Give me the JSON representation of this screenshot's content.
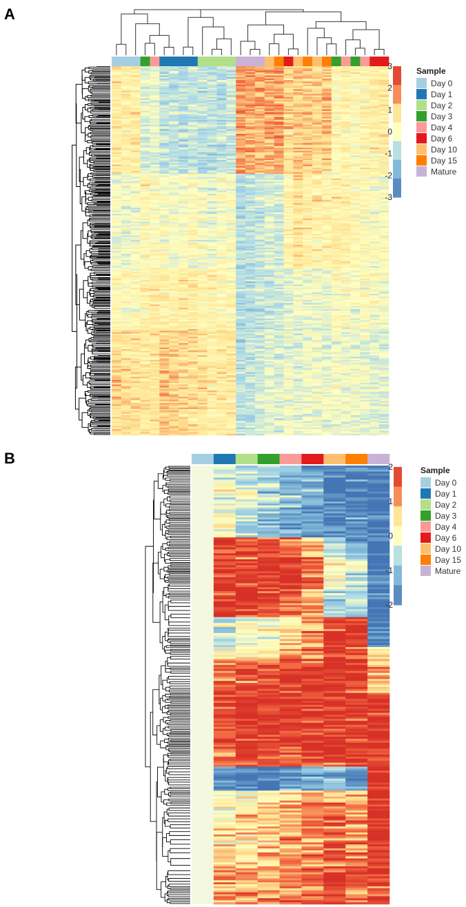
{
  "colors": {
    "Day 0": "#a6cee3",
    "Day 1": "#1f78b4",
    "Day 2": "#b2df8a",
    "Day 3": "#33a02c",
    "Day 4": "#fb9a99",
    "Day 6": "#e31a1c",
    "Day 10": "#fdbf6f",
    "Day 15": "#ff7f00",
    "Mature": "#cab2d6"
  },
  "chart_data": [
    {
      "panel": "A",
      "type": "heatmap",
      "title": "",
      "legend_title": "Sample",
      "legend_entries": [
        "Day 0",
        "Day 1",
        "Day 2",
        "Day 3",
        "Day 4",
        "Day 6",
        "Day 10",
        "Day 15",
        "Mature"
      ],
      "scale_ticks": [
        "3",
        "2",
        "1",
        "0",
        "-1",
        "-2",
        "-3"
      ],
      "scale_range": [
        -3,
        3
      ],
      "column_dendrogram": true,
      "row_dendrogram": true,
      "column_annotation": [
        "Day 0",
        "Day 0",
        "Day 0",
        "Day 3",
        "Day 4",
        "Day 1",
        "Day 1",
        "Day 1",
        "Day 1",
        "Day 2",
        "Day 2",
        "Day 2",
        "Day 2",
        "Mature",
        "Mature",
        "Mature",
        "Day 10",
        "Day 15",
        "Day 6",
        "Day 10",
        "Day 15",
        "Day 10",
        "Day 15",
        "Day 3",
        "Day 4",
        "Day 3",
        "Day 4",
        "Day 6",
        "Day 6"
      ],
      "column_profiles": [
        [
          0.6,
          -0.1,
          0.3,
          1.0
        ],
        [
          0.5,
          -0.2,
          0.2,
          0.9
        ],
        [
          0.6,
          0.0,
          0.1,
          0.9
        ],
        [
          -0.4,
          0.3,
          0.4,
          0.7
        ],
        [
          -0.3,
          0.2,
          0.6,
          0.8
        ],
        [
          -0.8,
          0.1,
          0.5,
          1.2
        ],
        [
          -0.8,
          -0.1,
          0.4,
          1.1
        ],
        [
          -0.9,
          0.0,
          0.6,
          1.0
        ],
        [
          -0.7,
          0.2,
          0.5,
          0.9
        ],
        [
          -0.8,
          0.0,
          0.3,
          0.8
        ],
        [
          -0.8,
          -0.2,
          0.4,
          0.6
        ],
        [
          -0.9,
          0.0,
          0.3,
          0.7
        ],
        [
          -0.7,
          0.1,
          0.2,
          0.7
        ],
        [
          1.6,
          -0.9,
          -0.9,
          -0.8
        ],
        [
          1.5,
          -0.8,
          -1.0,
          -0.7
        ],
        [
          1.4,
          -0.7,
          -0.8,
          -0.6
        ],
        [
          1.4,
          -0.4,
          -0.7,
          -0.3
        ],
        [
          1.6,
          -0.5,
          -0.6,
          -0.4
        ],
        [
          0.9,
          0.4,
          -0.3,
          -0.1
        ],
        [
          1.1,
          0.9,
          -0.2,
          -0.3
        ],
        [
          1.2,
          0.6,
          -0.3,
          -0.2
        ],
        [
          1.0,
          0.5,
          -0.2,
          -0.1
        ],
        [
          1.2,
          0.4,
          -0.3,
          -0.2
        ],
        [
          0.3,
          0.6,
          0.1,
          -0.1
        ],
        [
          0.4,
          0.5,
          0.0,
          -0.2
        ],
        [
          0.2,
          0.3,
          0.0,
          -0.1
        ],
        [
          0.4,
          0.2,
          0.1,
          -0.2
        ],
        [
          0.5,
          0.0,
          -0.1,
          -0.3
        ],
        [
          0.6,
          0.1,
          0.0,
          -0.3
        ]
      ]
    },
    {
      "panel": "B",
      "type": "heatmap",
      "title": "",
      "legend_title": "Sample",
      "legend_entries": [
        "Day 0",
        "Day 1",
        "Day 2",
        "Day 3",
        "Day 4",
        "Day 6",
        "Day 10",
        "Day 15",
        "Mature"
      ],
      "scale_ticks": [
        "2",
        "1",
        "0",
        "-1",
        "-2"
      ],
      "scale_range": [
        -2,
        2
      ],
      "column_dendrogram": false,
      "row_dendrogram": true,
      "column_annotation": [
        "Day 0",
        "Day 1",
        "Day 2",
        "Day 3",
        "Day 4",
        "Day 6",
        "Day 10",
        "Day 15",
        "Mature"
      ],
      "blocks": [
        {
          "span": 0.025,
          "values": [
            0,
            -0.3,
            -0.5,
            -0.8,
            -1.0,
            -1.5,
            -1.9,
            -1.9,
            -2.0
          ]
        },
        {
          "span": 0.065,
          "values": [
            0,
            0.0,
            -0.4,
            -0.7,
            -1.0,
            -1.4,
            -1.8,
            -1.8,
            -2.0
          ]
        },
        {
          "span": 0.055,
          "values": [
            0,
            -0.2,
            -0.6,
            -1.0,
            -1.3,
            -1.6,
            -1.9,
            -1.7,
            -2.0
          ]
        },
        {
          "span": 0.04,
          "values": [
            0,
            1.8,
            1.6,
            1.5,
            1.2,
            0.8,
            -0.5,
            -1.2,
            -2.0
          ]
        },
        {
          "span": 0.065,
          "values": [
            0,
            1.9,
            1.9,
            1.9,
            1.9,
            1.3,
            0.2,
            -0.3,
            -2.0
          ]
        },
        {
          "span": 0.06,
          "values": [
            0,
            1.9,
            1.9,
            1.8,
            1.6,
            1.0,
            -0.8,
            -0.6,
            -2.0
          ]
        },
        {
          "span": 0.06,
          "values": [
            0,
            -0.4,
            -0.2,
            0.0,
            0.5,
            1.0,
            1.8,
            1.8,
            -1.9
          ]
        },
        {
          "span": 0.025,
          "values": [
            0,
            0.2,
            0.4,
            0.6,
            0.9,
            1.2,
            1.9,
            1.9,
            0.4
          ]
        },
        {
          "span": 0.07,
          "values": [
            0,
            1.6,
            1.6,
            1.7,
            1.8,
            1.9,
            1.9,
            1.9,
            0.8
          ]
        },
        {
          "span": 0.125,
          "values": [
            0,
            1.7,
            1.9,
            1.9,
            1.9,
            1.9,
            1.9,
            1.9,
            1.9
          ]
        },
        {
          "span": 0.025,
          "values": [
            0,
            1.2,
            1.3,
            1.4,
            1.5,
            1.6,
            1.7,
            1.8,
            1.9
          ]
        },
        {
          "span": 0.05,
          "values": [
            0,
            -1.6,
            -1.8,
            -1.9,
            -1.5,
            -1.3,
            -1.0,
            -1.6,
            1.9
          ]
        },
        {
          "span": 0.025,
          "values": [
            0,
            0.3,
            0.2,
            0.3,
            0.6,
            0.8,
            0.9,
            0.8,
            1.9
          ]
        },
        {
          "span": 0.13,
          "values": [
            0,
            0.4,
            0.6,
            0.8,
            1.0,
            1.2,
            1.5,
            1.2,
            1.9
          ]
        },
        {
          "span": 0.08,
          "values": [
            0,
            1.0,
            1.1,
            1.2,
            1.3,
            1.4,
            1.6,
            1.5,
            1.9
          ]
        }
      ]
    }
  ]
}
